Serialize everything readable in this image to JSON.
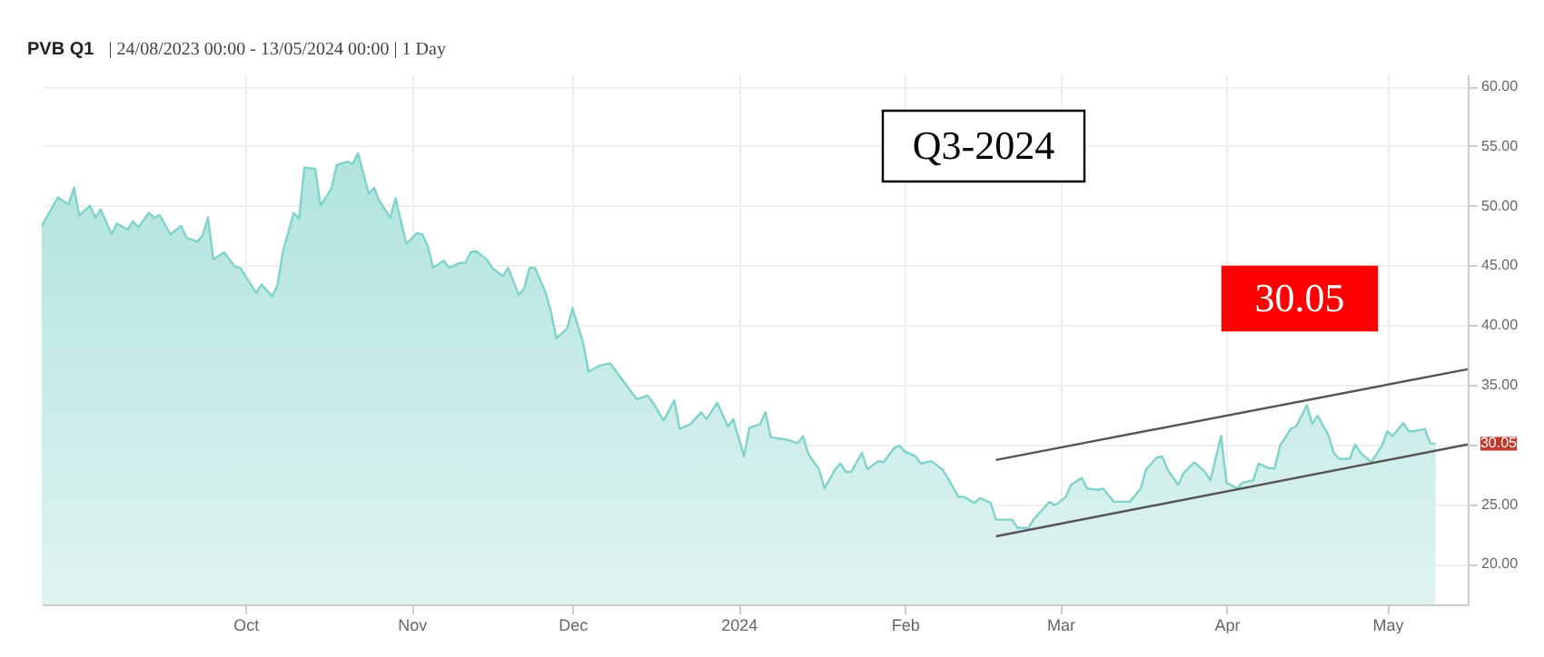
{
  "chart_data": {
    "type": "area",
    "title": "PVB Q1",
    "subtitle": "| 24/08/2023 00:00 - 13/05/2024 00:00 | 1 Day",
    "xlim": [
      "2023-08-24",
      "2024-05-16"
    ],
    "xticks": [
      {
        "value": "2023-10-01",
        "label": "Oct"
      },
      {
        "value": "2023-11-01",
        "label": "Nov"
      },
      {
        "value": "2023-12-01",
        "label": "Dec"
      },
      {
        "value": "2024-01-01",
        "label": "2024"
      },
      {
        "value": "2024-02-01",
        "label": "Feb"
      },
      {
        "value": "2024-03-01",
        "label": "Mar"
      },
      {
        "value": "2024-04-01",
        "label": "Apr"
      },
      {
        "value": "2024-05-01",
        "label": "May"
      }
    ],
    "ylim": [
      16.6,
      61
    ],
    "yticks": [
      {
        "value": 20,
        "label": "20.00"
      },
      {
        "value": 25,
        "label": "25.00"
      },
      {
        "value": 30,
        "label": null
      },
      {
        "value": 35,
        "label": "35.00"
      },
      {
        "value": 40,
        "label": "40.00"
      },
      {
        "value": 45,
        "label": "45.00"
      },
      {
        "value": 50,
        "label": "50.00"
      },
      {
        "value": 55,
        "label": "55.00"
      },
      {
        "value": 60,
        "label": "60.00"
      }
    ],
    "grid": true,
    "series": [
      {
        "color": "#7fd3cb",
        "x": [
          "2023-08-24",
          "2023-08-27",
          "2023-08-29",
          "2023-08-30",
          "2023-08-31",
          "2023-09-02",
          "2023-09-03",
          "2023-09-04",
          "2023-09-06",
          "2023-09-07",
          "2023-09-09",
          "2023-09-10",
          "2023-09-11",
          "2023-09-13",
          "2023-09-14",
          "2023-09-15",
          "2023-09-17",
          "2023-09-19",
          "2023-09-20",
          "2023-09-22",
          "2023-09-23",
          "2023-09-24",
          "2023-09-25",
          "2023-09-27",
          "2023-09-29",
          "2023-09-30",
          "2023-10-01",
          "2023-10-03",
          "2023-10-04",
          "2023-10-06",
          "2023-10-07",
          "2023-10-08",
          "2023-10-10",
          "2023-10-11",
          "2023-10-12",
          "2023-10-14",
          "2023-10-15",
          "2023-10-17",
          "2023-10-18",
          "2023-10-20",
          "2023-10-21",
          "2023-10-22",
          "2023-10-24",
          "2023-10-25",
          "2023-10-26",
          "2023-10-28",
          "2023-10-29",
          "2023-10-31",
          "2023-11-02",
          "2023-11-03",
          "2023-11-04",
          "2023-11-05",
          "2023-11-07",
          "2023-11-08",
          "2023-11-10",
          "2023-11-11",
          "2023-11-12",
          "2023-11-13",
          "2023-11-15",
          "2023-11-16",
          "2023-11-18",
          "2023-11-19",
          "2023-11-21",
          "2023-11-22",
          "2023-11-23",
          "2023-11-24",
          "2023-11-26",
          "2023-11-27",
          "2023-11-28",
          "2023-11-30",
          "2023-12-01",
          "2023-12-03",
          "2023-12-04",
          "2023-12-06",
          "2023-12-08",
          "2023-12-10",
          "2023-12-13",
          "2023-12-15",
          "2023-12-16",
          "2023-12-18",
          "2023-12-20",
          "2023-12-21",
          "2023-12-23",
          "2023-12-25",
          "2023-12-26",
          "2023-12-28",
          "2023-12-30",
          "2023-12-31",
          "2024-01-02",
          "2024-01-03",
          "2024-01-05",
          "2024-01-06",
          "2024-01-07",
          "2024-01-10",
          "2024-01-12",
          "2024-01-13",
          "2024-01-14",
          "2024-01-16",
          "2024-01-17",
          "2024-01-19",
          "2024-01-20",
          "2024-01-21",
          "2024-01-22",
          "2024-01-24",
          "2024-01-25",
          "2024-01-27",
          "2024-01-28",
          "2024-01-30",
          "2024-01-31",
          "2024-02-01",
          "2024-02-03",
          "2024-02-04",
          "2024-02-06",
          "2024-02-08",
          "2024-02-09",
          "2024-02-11",
          "2024-02-12",
          "2024-02-14",
          "2024-02-15",
          "2024-02-17",
          "2024-02-18",
          "2024-02-21",
          "2024-02-22",
          "2024-02-24",
          "2024-02-25",
          "2024-02-28",
          "2024-02-29",
          "2024-03-02",
          "2024-03-03",
          "2024-03-05",
          "2024-03-06",
          "2024-03-08",
          "2024-03-09",
          "2024-03-11",
          "2024-03-14",
          "2024-03-16",
          "2024-03-17",
          "2024-03-19",
          "2024-03-20",
          "2024-03-21",
          "2024-03-23",
          "2024-03-24",
          "2024-03-26",
          "2024-03-28",
          "2024-03-29",
          "2024-03-31",
          "2024-04-01",
          "2024-04-03",
          "2024-04-04",
          "2024-04-06",
          "2024-04-07",
          "2024-04-09",
          "2024-04-10",
          "2024-04-11",
          "2024-04-13",
          "2024-04-14",
          "2024-04-16",
          "2024-04-17",
          "2024-04-18",
          "2024-04-20",
          "2024-04-21",
          "2024-04-22",
          "2024-04-24",
          "2024-04-25",
          "2024-04-26",
          "2024-04-28",
          "2024-04-30",
          "2024-05-01",
          "2024-05-02",
          "2024-05-04",
          "2024-05-05",
          "2024-05-06",
          "2024-05-08",
          "2024-05-09",
          "2024-05-10"
        ],
        "values": [
          48.3,
          50.7,
          50.1,
          51.5,
          49.2,
          50.0,
          49.0,
          49.7,
          47.6,
          48.5,
          48.0,
          48.7,
          48.2,
          49.4,
          49.0,
          49.2,
          47.6,
          48.3,
          47.3,
          47.0,
          47.5,
          49.0,
          45.5,
          46.1,
          44.9,
          44.8,
          44.1,
          42.7,
          43.4,
          42.4,
          43.4,
          46.2,
          49.4,
          48.9,
          53.2,
          53.1,
          50.0,
          51.4,
          53.4,
          53.7,
          53.5,
          54.4,
          51.0,
          51.5,
          50.4,
          49.0,
          50.6,
          46.8,
          47.7,
          47.6,
          46.6,
          44.8,
          45.4,
          44.8,
          45.2,
          45.2,
          46.1,
          46.2,
          45.5,
          44.8,
          44.1,
          44.8,
          42.5,
          43.1,
          44.8,
          44.8,
          42.7,
          41.1,
          38.9,
          39.7,
          41.4,
          38.5,
          36.1,
          36.6,
          36.8,
          35.6,
          33.8,
          34.1,
          33.5,
          32.0,
          33.7,
          31.3,
          31.7,
          32.7,
          32.1,
          33.5,
          31.5,
          32.1,
          29.0,
          31.4,
          31.7,
          32.7,
          30.6,
          30.4,
          30.1,
          30.7,
          29.2,
          27.9,
          26.3,
          27.9,
          28.4,
          27.7,
          27.7,
          29.3,
          27.9,
          28.6,
          28.5,
          29.7,
          29.9,
          29.4,
          29.0,
          28.4,
          28.6,
          27.9,
          27.2,
          25.6,
          25.6,
          25.1,
          25.5,
          25.1,
          23.7,
          23.7,
          23.0,
          23.0,
          23.7,
          25.2,
          24.9,
          25.6,
          26.6,
          27.2,
          26.3,
          26.2,
          26.3,
          25.2,
          25.2,
          26.3,
          27.9,
          28.9,
          29.0,
          27.9,
          26.6,
          27.6,
          28.5,
          27.7,
          27.0,
          30.7,
          26.8,
          26.3,
          26.8,
          27.0,
          28.4,
          28.0,
          28.0,
          29.9,
          31.3,
          31.5,
          33.3,
          31.7,
          32.4,
          30.8,
          29.3,
          28.8,
          28.8,
          30.0,
          29.3,
          28.5,
          29.9,
          31.1,
          30.7,
          31.8,
          31.1,
          31.1,
          31.3,
          30.1,
          30.05
        ]
      },
      {
        "type": "line",
        "color": "#555555",
        "x": [
          "2024-02-18",
          "2024-05-16"
        ],
        "values": [
          28.7,
          36.3
        ]
      },
      {
        "type": "line",
        "color": "#555555",
        "x": [
          "2024-02-18",
          "2024-05-16"
        ],
        "values": [
          22.3,
          30.0
        ]
      }
    ],
    "annotations": [
      "Q3-2024",
      "30.05",
      {
        "text": "30.05",
        "x": "2024-05-16",
        "y": 30.05
      }
    ]
  }
}
